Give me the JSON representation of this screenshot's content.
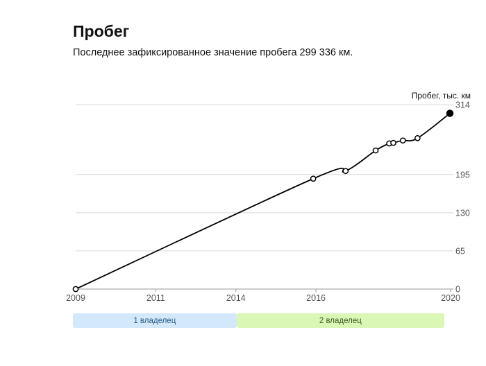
{
  "header": {
    "title": "Пробег",
    "subtitle": "Последнее зафиксированное значение пробега 299 336 км."
  },
  "chart_data": {
    "type": "line",
    "title": "Пробег",
    "ylabel": "Пробег, тыс. км",
    "xlim": [
      2009.0,
      2020.0
    ],
    "ylim": [
      0,
      314
    ],
    "yticks": [
      0,
      65,
      130,
      195,
      314
    ],
    "xtick_labels": [
      {
        "label": "2009",
        "value": 2009.0
      },
      {
        "label": "2011",
        "value": 2011.35
      },
      {
        "label": "2014",
        "value": 2013.7
      },
      {
        "label": "2016",
        "value": 2016.05
      },
      {
        "label": "2020",
        "value": 2020.0
      }
    ],
    "grid": true,
    "points": [
      {
        "x": 2009.0,
        "y": 0
      },
      {
        "x": 2015.97,
        "y": 188
      },
      {
        "x": 2016.92,
        "y": 201
      },
      {
        "x": 2017.8,
        "y": 236
      },
      {
        "x": 2018.2,
        "y": 248
      },
      {
        "x": 2018.32,
        "y": 249
      },
      {
        "x": 2018.6,
        "y": 253
      },
      {
        "x": 2019.03,
        "y": 257
      },
      {
        "x": 2019.98,
        "y": 299.3
      }
    ],
    "owners": [
      {
        "label": "1 владелец",
        "from": 2009.0,
        "to": 2013.8,
        "color": "#d3e9fb",
        "text_color": "#2a5a85"
      },
      {
        "label": "2 владелец",
        "from": 2013.8,
        "to": 2019.9,
        "color": "#dbf7b6",
        "text_color": "#3a5a1e"
      }
    ],
    "line_color": "#000000",
    "grid_color": "#d9d9d9"
  }
}
